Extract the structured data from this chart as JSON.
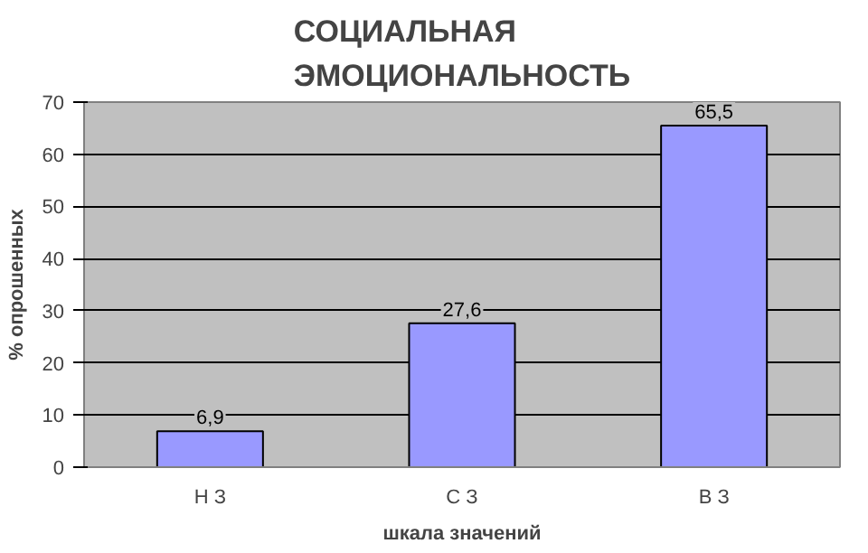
{
  "chart_data": {
    "type": "bar",
    "title": "СОЦИАЛЬНАЯ\nЭМОЦИОНАЛЬНОСТЬ",
    "xlabel": "шкала значений",
    "ylabel": "% опрошенных",
    "categories": [
      "Н З",
      "С З",
      "В З"
    ],
    "values": [
      6.9,
      27.6,
      65.5
    ],
    "value_labels": [
      "6,9",
      "27,6",
      "65,5"
    ],
    "color": "#9999ff",
    "ylim": [
      0,
      70
    ],
    "yticks": [
      0,
      10,
      20,
      30,
      40,
      50,
      60,
      70
    ],
    "grid": "y"
  }
}
